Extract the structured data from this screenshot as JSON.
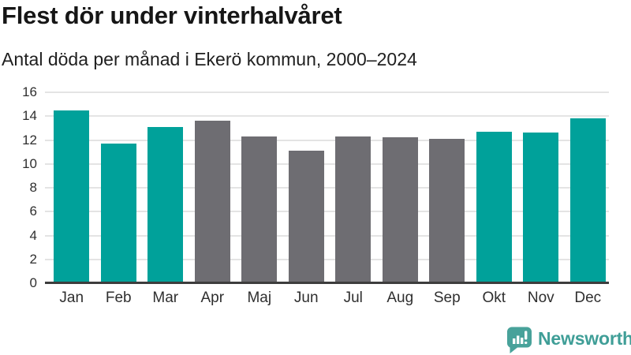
{
  "header": {
    "title": "Flest dör under vinterhalvåret",
    "subtitle": "Antal döda per månad i Ekerö kommun, 2000–2024"
  },
  "chart_data": {
    "type": "bar",
    "title": "Flest dör under vinterhalvåret",
    "subtitle": "Antal döda per månad i Ekerö kommun, 2000–2024",
    "categories": [
      "Jan",
      "Feb",
      "Mar",
      "Apr",
      "Maj",
      "Jun",
      "Jul",
      "Aug",
      "Sep",
      "Okt",
      "Nov",
      "Dec"
    ],
    "values": [
      14.5,
      11.7,
      13.1,
      13.6,
      12.3,
      11.1,
      12.3,
      12.2,
      12.1,
      12.7,
      12.6,
      13.8
    ],
    "bar_colors": [
      "#00a19a",
      "#00a19a",
      "#00a19a",
      "#6e6d72",
      "#6e6d72",
      "#6e6d72",
      "#6e6d72",
      "#6e6d72",
      "#6e6d72",
      "#00a19a",
      "#00a19a",
      "#00a19a"
    ],
    "highlight_color": "#00a19a",
    "muted_color": "#6e6d72",
    "xlabel": "",
    "ylabel": "",
    "ylim": [
      0,
      16
    ],
    "yticks": [
      0,
      2,
      4,
      6,
      8,
      10,
      12,
      14,
      16
    ],
    "grid": true,
    "legend": "none"
  },
  "axes": {
    "gridline_color": "#e4e4e4",
    "baseline_color": "#3d3d3d",
    "tick_label_color": "#2f2f2f"
  },
  "footer": {
    "brand": "Newsworthy",
    "brand_color": "#3f9e97",
    "icon": "speech-bubble-bar-chart"
  }
}
